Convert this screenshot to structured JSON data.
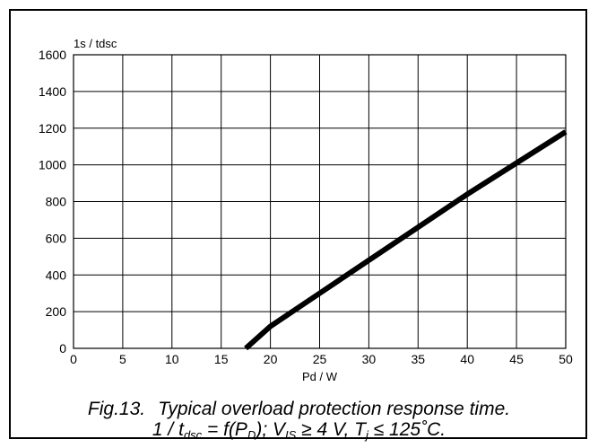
{
  "chart_data": {
    "type": "line",
    "title": "",
    "xlabel": "Pd / W",
    "ylabel": "1s / tdsc",
    "xlim": [
      0,
      50
    ],
    "ylim": [
      0,
      1600
    ],
    "xticks": [
      "0",
      "5",
      "10",
      "15",
      "20",
      "25",
      "30",
      "35",
      "40",
      "45",
      "50"
    ],
    "yticks": [
      "0",
      "200",
      "400",
      "600",
      "800",
      "1000",
      "1200",
      "1400",
      "1600"
    ],
    "grid": true,
    "series": [
      {
        "x": [
          17.5,
          20,
          25,
          30,
          35,
          40,
          45,
          50
        ],
        "y": [
          0,
          120,
          300,
          480,
          660,
          840,
          1010,
          1180
        ],
        "color": "#000000"
      }
    ]
  },
  "caption": {
    "number": "Fig.13.",
    "line1_text": "Typical overload protection response time.",
    "line2": {
      "p1": "1 / t",
      "p1_sub": "dsc",
      "p2": " = f(P",
      "p2_sub": "D",
      "p3": "); V",
      "p3_sub": "IS",
      "p4": " ≥ 4 V,  T",
      "p4_sub": "j",
      "p5": " ≤ 125˚C."
    }
  }
}
